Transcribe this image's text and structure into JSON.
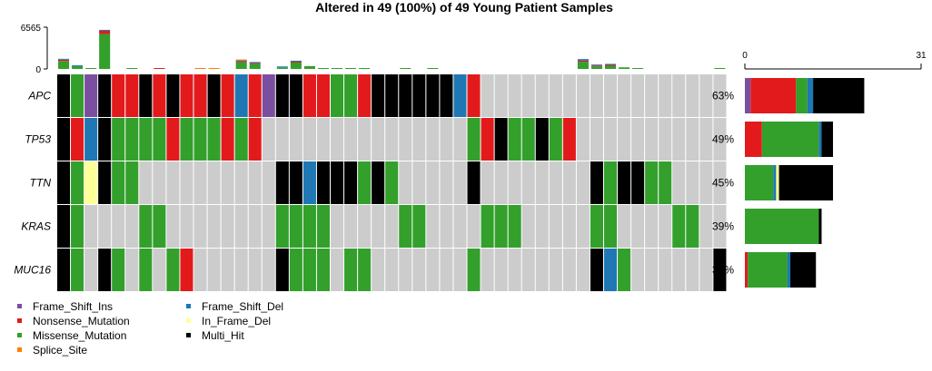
{
  "chart_data": {
    "type": "oncoplot",
    "title": "Altered in 49 (100%) of 49 Young Patient Samples",
    "top_axis": {
      "max_label": "6565",
      "min_label": "0",
      "ylim": [
        0,
        6565
      ]
    },
    "side_axis": {
      "min_label": "0",
      "max_label": "31",
      "xlim": [
        0,
        31
      ]
    },
    "colors": {
      "Frame_Shift_Ins": "#7b4fa0",
      "Nonsense_Mutation": "#e31a1c",
      "Missense_Mutation": "#33a02c",
      "Splice_Site": "#ff7f00",
      "Frame_Shift_Del": "#1f78b4",
      "In_Frame_Del": "#ffff99",
      "Multi_Hit": "#000000",
      "none": "#cccccc"
    },
    "legend": [
      {
        "name": "Frame_Shift_Ins",
        "label": "Frame_Shift_Ins"
      },
      {
        "name": "Nonsense_Mutation",
        "label": "Nonsense_Mutation"
      },
      {
        "name": "Missense_Mutation",
        "label": "Missense_Mutation"
      },
      {
        "name": "Splice_Site",
        "label": "Splice_Site"
      },
      {
        "name": "Frame_Shift_Del",
        "label": "Frame_Shift_Del"
      },
      {
        "name": "In_Frame_Del",
        "label": "In_Frame_Del"
      },
      {
        "name": "Multi_Hit",
        "label": "Multi_Hit"
      }
    ],
    "genes": [
      {
        "name": "APC",
        "pct": "63%",
        "side": [
          {
            "type": "Frame_Shift_Ins",
            "value": 1
          },
          {
            "type": "Nonsense_Mutation",
            "value": 8
          },
          {
            "type": "Missense_Mutation",
            "value": 2
          },
          {
            "type": "Frame_Shift_Del",
            "value": 1
          },
          {
            "type": "Multi_Hit",
            "value": 9
          }
        ]
      },
      {
        "name": "TP53",
        "pct": "49%",
        "side": [
          {
            "type": "Nonsense_Mutation",
            "value": 3
          },
          {
            "type": "Missense_Mutation",
            "value": 10
          },
          {
            "type": "Frame_Shift_Del",
            "value": 0.5
          },
          {
            "type": "Multi_Hit",
            "value": 2
          }
        ]
      },
      {
        "name": "TTN",
        "pct": "45%",
        "side": [
          {
            "type": "Missense_Mutation",
            "value": 5
          },
          {
            "type": "Frame_Shift_Del",
            "value": 0.5
          },
          {
            "type": "In_Frame_Del",
            "value": 0.5
          },
          {
            "type": "Multi_Hit",
            "value": 9.5
          }
        ]
      },
      {
        "name": "KRAS",
        "pct": "39%",
        "side": [
          {
            "type": "Missense_Mutation",
            "value": 13
          },
          {
            "type": "Multi_Hit",
            "value": 0.5
          }
        ]
      },
      {
        "name": "MUC16",
        "pct": "37%",
        "side": [
          {
            "type": "Nonsense_Mutation",
            "value": 0.5
          },
          {
            "type": "Missense_Mutation",
            "value": 7
          },
          {
            "type": "Frame_Shift_Del",
            "value": 0.5
          },
          {
            "type": "Multi_Hit",
            "value": 4.5
          }
        ]
      }
    ],
    "matrix": [
      [
        "Multi_Hit",
        "Missense_Mutation",
        "Frame_Shift_Ins",
        "Multi_Hit",
        "Nonsense_Mutation",
        "Nonsense_Mutation",
        "Multi_Hit",
        "Nonsense_Mutation",
        "Multi_Hit",
        "Nonsense_Mutation",
        "Nonsense_Mutation",
        "Multi_Hit",
        "Nonsense_Mutation",
        "Frame_Shift_Del",
        "Nonsense_Mutation",
        "Frame_Shift_Ins",
        "Multi_Hit",
        "Multi_Hit",
        "Nonsense_Mutation",
        "Nonsense_Mutation",
        "Missense_Mutation",
        "Missense_Mutation",
        "Nonsense_Mutation",
        "Multi_Hit",
        "Multi_Hit",
        "Multi_Hit",
        "Multi_Hit",
        "Multi_Hit",
        "Multi_Hit",
        "Frame_Shift_Del",
        "Nonsense_Mutation",
        "none",
        "none",
        "none",
        "none",
        "none",
        "none",
        "none",
        "none",
        "none",
        "none",
        "none",
        "none",
        "none",
        "none",
        "none",
        "none",
        "none",
        "none"
      ],
      [
        "Multi_Hit",
        "Nonsense_Mutation",
        "Frame_Shift_Del",
        "Multi_Hit",
        "Missense_Mutation",
        "Missense_Mutation",
        "Missense_Mutation",
        "Missense_Mutation",
        "Nonsense_Mutation",
        "Missense_Mutation",
        "Missense_Mutation",
        "Missense_Mutation",
        "Nonsense_Mutation",
        "Missense_Mutation",
        "Nonsense_Mutation",
        "none",
        "none",
        "none",
        "none",
        "none",
        "none",
        "none",
        "none",
        "none",
        "none",
        "none",
        "none",
        "none",
        "none",
        "none",
        "Missense_Mutation",
        "Nonsense_Mutation",
        "Multi_Hit",
        "Missense_Mutation",
        "Missense_Mutation",
        "Multi_Hit",
        "Missense_Mutation",
        "Nonsense_Mutation",
        "none",
        "none",
        "none",
        "none",
        "none",
        "none",
        "none",
        "none",
        "none",
        "none",
        "none"
      ],
      [
        "Multi_Hit",
        "Missense_Mutation",
        "In_Frame_Del",
        "Multi_Hit",
        "Missense_Mutation",
        "Missense_Mutation",
        "none",
        "none",
        "none",
        "none",
        "none",
        "none",
        "none",
        "none",
        "none",
        "none",
        "Multi_Hit",
        "Multi_Hit",
        "Frame_Shift_Del",
        "Multi_Hit",
        "Multi_Hit",
        "Multi_Hit",
        "Missense_Mutation",
        "Multi_Hit",
        "Missense_Mutation",
        "none",
        "none",
        "none",
        "none",
        "none",
        "Multi_Hit",
        "none",
        "none",
        "none",
        "none",
        "none",
        "none",
        "none",
        "none",
        "Multi_Hit",
        "Missense_Mutation",
        "Multi_Hit",
        "Multi_Hit",
        "Missense_Mutation",
        "Missense_Mutation",
        "none",
        "none",
        "none",
        "none"
      ],
      [
        "Multi_Hit",
        "Missense_Mutation",
        "none",
        "none",
        "none",
        "none",
        "Missense_Mutation",
        "Missense_Mutation",
        "none",
        "none",
        "none",
        "none",
        "none",
        "none",
        "none",
        "none",
        "Missense_Mutation",
        "Missense_Mutation",
        "Missense_Mutation",
        "Missense_Mutation",
        "none",
        "none",
        "none",
        "none",
        "none",
        "Missense_Mutation",
        "Missense_Mutation",
        "none",
        "none",
        "none",
        "none",
        "Missense_Mutation",
        "Missense_Mutation",
        "Missense_Mutation",
        "none",
        "none",
        "none",
        "none",
        "none",
        "Missense_Mutation",
        "Missense_Mutation",
        "none",
        "none",
        "none",
        "none",
        "Missense_Mutation",
        "Missense_Mutation",
        "none",
        "none"
      ],
      [
        "Multi_Hit",
        "Missense_Mutation",
        "none",
        "Multi_Hit",
        "Missense_Mutation",
        "none",
        "Missense_Mutation",
        "none",
        "Missense_Mutation",
        "Nonsense_Mutation",
        "none",
        "none",
        "none",
        "none",
        "none",
        "none",
        "Multi_Hit",
        "Missense_Mutation",
        "Missense_Mutation",
        "Missense_Mutation",
        "none",
        "Missense_Mutation",
        "Missense_Mutation",
        "none",
        "none",
        "none",
        "none",
        "none",
        "none",
        "none",
        "Missense_Mutation",
        "none",
        "none",
        "none",
        "none",
        "none",
        "none",
        "none",
        "none",
        "Multi_Hit",
        "Frame_Shift_Del",
        "Missense_Mutation",
        "none",
        "none",
        "none",
        "none",
        "none",
        "none",
        "Multi_Hit"
      ]
    ],
    "tmb": [
      [
        {
          "type": "Missense_Mutation",
          "value": 1250
        },
        {
          "type": "Nonsense_Mutation",
          "value": 200
        },
        {
          "type": "Frame_Shift_Del",
          "value": 80
        }
      ],
      [
        {
          "type": "Missense_Mutation",
          "value": 450
        },
        {
          "type": "Frame_Shift_Del",
          "value": 80
        }
      ],
      [
        {
          "type": "Missense_Mutation",
          "value": 120
        }
      ],
      [
        {
          "type": "Missense_Mutation",
          "value": 5500
        },
        {
          "type": "Nonsense_Mutation",
          "value": 500
        },
        {
          "type": "Frame_Shift_Del",
          "value": 150
        }
      ],
      [],
      [
        {
          "type": "Missense_Mutation",
          "value": 30
        }
      ],
      [],
      [
        {
          "type": "Nonsense_Mutation",
          "value": 40
        }
      ],
      [],
      [],
      [
        {
          "type": "Splice_Site",
          "value": 30
        }
      ],
      [
        {
          "type": "Splice_Site",
          "value": 30
        }
      ],
      [],
      [
        {
          "type": "Missense_Mutation",
          "value": 1050
        },
        {
          "type": "Nonsense_Mutation",
          "value": 150
        },
        {
          "type": "Frame_Shift_Del",
          "value": 100
        },
        {
          "type": "Splice_Site",
          "value": 60
        }
      ],
      [
        {
          "type": "Missense_Mutation",
          "value": 800
        },
        {
          "type": "Nonsense_Mutation",
          "value": 100
        },
        {
          "type": "Frame_Shift_Del",
          "value": 60
        }
      ],
      [],
      [
        {
          "type": "Missense_Mutation",
          "value": 250
        },
        {
          "type": "Frame_Shift_Del",
          "value": 60
        }
      ],
      [
        {
          "type": "Missense_Mutation",
          "value": 1000
        },
        {
          "type": "Nonsense_Mutation",
          "value": 150
        },
        {
          "type": "Frame_Shift_Del",
          "value": 150
        }
      ],
      [
        {
          "type": "Missense_Mutation",
          "value": 450
        }
      ],
      [
        {
          "type": "Missense_Mutation",
          "value": 30
        }
      ],
      [
        {
          "type": "Missense_Mutation",
          "value": 30
        }
      ],
      [
        {
          "type": "Missense_Mutation",
          "value": 30
        }
      ],
      [
        {
          "type": "Missense_Mutation",
          "value": 30
        }
      ],
      [],
      [],
      [
        {
          "type": "Missense_Mutation",
          "value": 30
        }
      ],
      [],
      [
        {
          "type": "Missense_Mutation",
          "value": 30
        }
      ],
      [],
      [],
      [],
      [],
      [],
      [],
      [],
      [],
      [],
      [],
      [
        {
          "type": "Missense_Mutation",
          "value": 1100
        },
        {
          "type": "Nonsense_Mutation",
          "value": 200
        },
        {
          "type": "Frame_Shift_Del",
          "value": 250
        }
      ],
      [
        {
          "type": "Missense_Mutation",
          "value": 400
        },
        {
          "type": "Nonsense_Mutation",
          "value": 100
        },
        {
          "type": "Frame_Shift_Del",
          "value": 100
        }
      ],
      [
        {
          "type": "Missense_Mutation",
          "value": 500
        },
        {
          "type": "Nonsense_Mutation",
          "value": 150
        },
        {
          "type": "Frame_Shift_Del",
          "value": 100
        }
      ],
      [
        {
          "type": "Missense_Mutation",
          "value": 250
        }
      ],
      [
        {
          "type": "Missense_Mutation",
          "value": 100
        }
      ],
      [],
      [],
      [],
      [],
      [],
      [
        {
          "type": "Missense_Mutation",
          "value": 30
        }
      ]
    ]
  }
}
